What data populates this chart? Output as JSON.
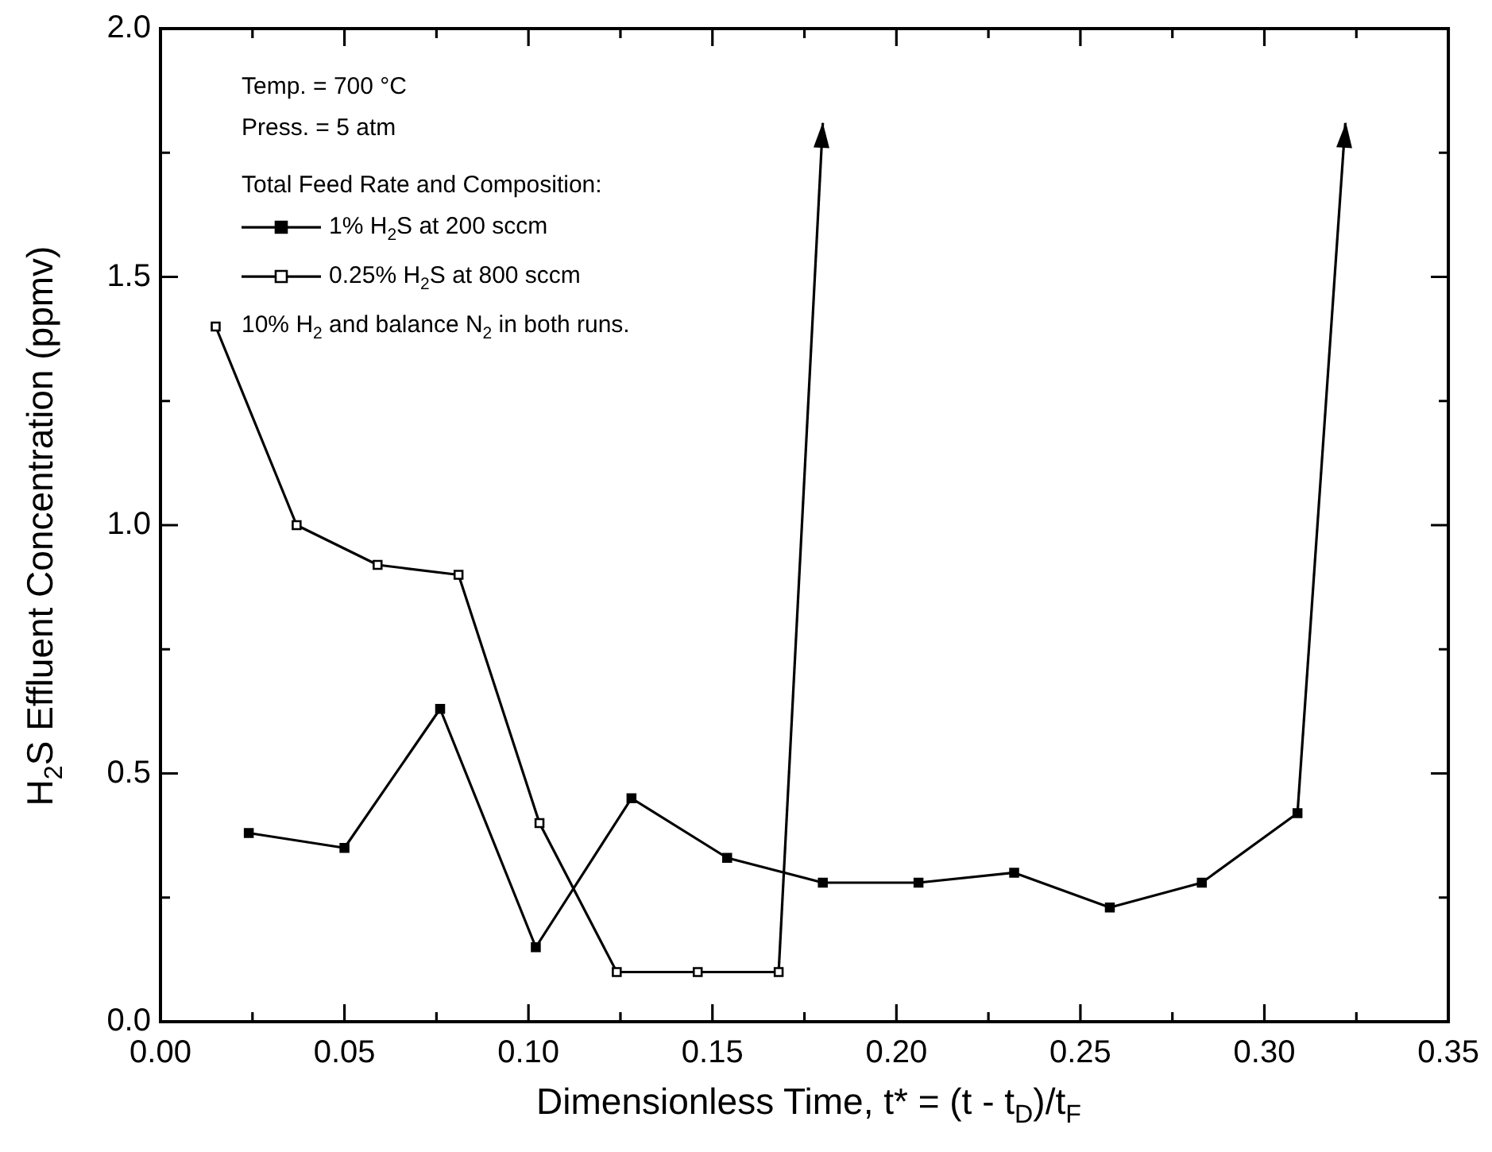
{
  "chart_data": {
    "type": "line",
    "xlabel": "Dimensionless Time, t* = (t - t$_{D}$)/t$_{F}$",
    "ylabel": "H$_{2}$S Effluent Concentration (ppmv)",
    "legend_title": "Total Feed Rate and Composition:",
    "annotations": [
      "Temp. = 700 °C",
      "Press. = 5 atm",
      "10% H$_{2}$ and balance N$_{2}$ in both runs."
    ],
    "legend": "top left",
    "grid": false,
    "xlim": [
      0,
      0.35
    ],
    "ylim": [
      0,
      2.0
    ],
    "xticks": [
      {
        "value": 0,
        "label": "0.00"
      },
      {
        "value": 0.025,
        "label": null
      },
      0.05,
      {
        "value": 0.075,
        "label": null
      },
      {
        "value": 0.1,
        "label": "0.10"
      },
      {
        "value": 0.125,
        "label": null
      },
      0.15,
      {
        "value": 0.175,
        "label": null
      },
      {
        "value": 0.2,
        "label": "0.20"
      },
      {
        "value": 0.225,
        "label": null
      },
      0.25,
      {
        "value": 0.275,
        "label": null
      },
      {
        "value": 0.3,
        "label": "0.30"
      },
      {
        "value": 0.325,
        "label": null
      },
      0.35
    ],
    "yticks": [
      {
        "value": 0,
        "label": "0.0"
      },
      {
        "value": 0.25,
        "label": null
      },
      0.5,
      {
        "value": 0.75,
        "label": null
      },
      {
        "value": 1.0,
        "label": "1.0"
      },
      {
        "value": 1.25,
        "label": null
      },
      1.5,
      {
        "value": 1.75,
        "label": null
      },
      {
        "value": 2.0,
        "label": "2.0"
      }
    ],
    "series": [
      {
        "name": "1% H$_{2}$S at 200 sccm",
        "marker": "square",
        "color": "#000000",
        "x": [
          0.024,
          0.05,
          0.076,
          0.102,
          0.128,
          0.154,
          0.18,
          0.206,
          0.232,
          0.258,
          0.283,
          0.309
        ],
        "values": [
          0.38,
          0.35,
          0.63,
          0.15,
          0.45,
          0.33,
          0.28,
          0.28,
          0.3,
          0.23,
          0.28,
          0.42
        ]
      },
      {
        "name": "0.25% H$_{2}$S at 800 sccm",
        "marker": "square_open",
        "color": "#000000",
        "x": [
          0.015,
          0.037,
          0.059,
          0.081,
          0.103,
          0.124,
          0.146,
          0.168
        ],
        "values": [
          1.4,
          1.0,
          0.92,
          0.9,
          0.4,
          0.1,
          0.1,
          0.1
        ]
      },
      {
        "marker": "none",
        "color": "#000000",
        "x": [
          0.309,
          0.322
        ],
        "values": [
          0.42,
          1.81
        ]
      },
      {
        "marker": "none",
        "color": "#000000",
        "x": [
          0.168,
          0.18
        ],
        "values": [
          0.1,
          1.81
        ]
      }
    ]
  }
}
